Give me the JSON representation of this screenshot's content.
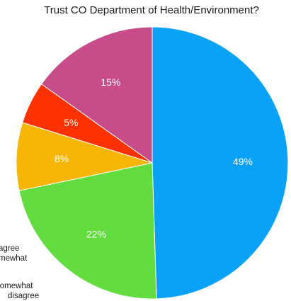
{
  "chart_data": {
    "type": "pie",
    "title": "Trust CO Department of Health/Environment?",
    "slices": [
      {
        "label": "49%",
        "value": 49,
        "color": "#0aa2f7"
      },
      {
        "label": "22%",
        "value": 22,
        "color": "#63dc3f"
      },
      {
        "label": "8%",
        "value": 8,
        "color": "#f7b605"
      },
      {
        "label": "5%",
        "value": 5,
        "color": "#fe3200"
      },
      {
        "label": "15%",
        "value": 15,
        "color": "#c84b8a"
      }
    ],
    "partial_legend": [
      "agree",
      "mewhat",
      "somewhat",
      "disagree"
    ],
    "start_angle": "top",
    "direction": "clockwise"
  }
}
